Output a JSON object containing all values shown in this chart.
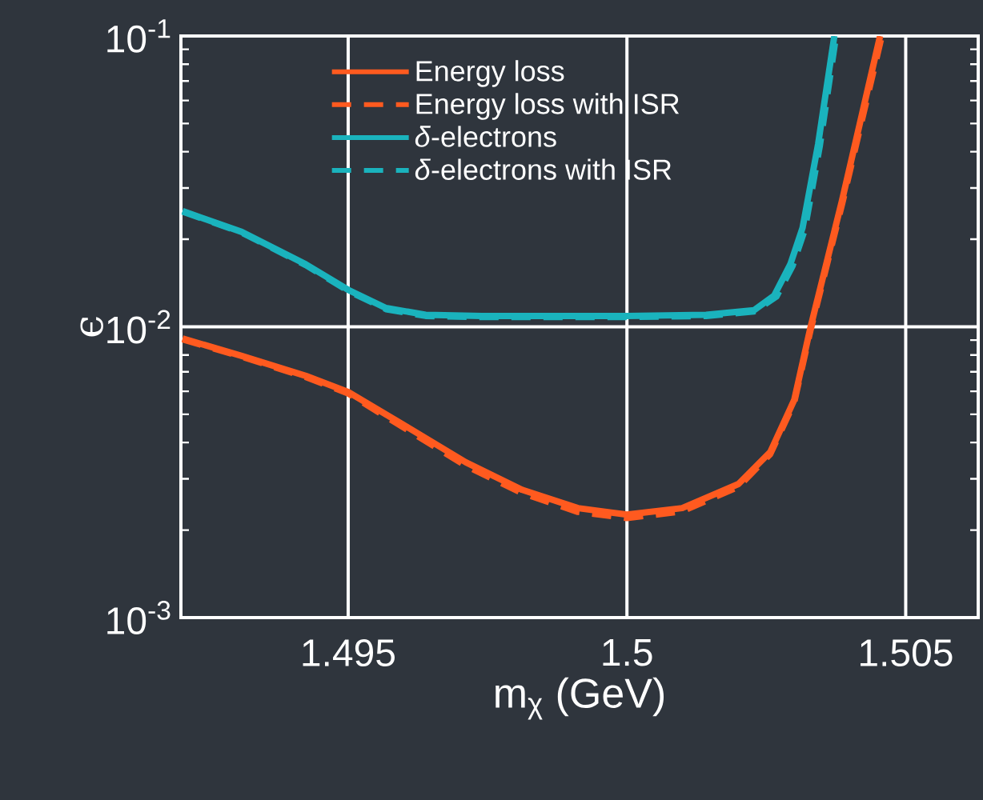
{
  "chart_data": {
    "type": "line",
    "xlabel": "m$_{χ}$ (GeV)",
    "ylabel": "ϵ",
    "log": "y",
    "grid": true,
    "legend": "top",
    "line_style": "solid",
    "marker": "none",
    "xlim": [
      1.492,
      1.5063
    ],
    "xticks": [
      1.495,
      1.5,
      1.505
    ],
    "ylim": [
      0.001,
      0.1
    ],
    "yticks": [
      {
        "value": 0.001,
        "label": "10$^{-3}$"
      },
      {
        "value": 0.01,
        "label": "10$^{-2}$"
      },
      {
        "value": 0.1,
        "label": "10$^{-1}$"
      }
    ],
    "series": [
      {
        "name": "Energy loss",
        "color": "#ff5a1f",
        "x": [
          1.49203,
          1.49309,
          1.49424,
          1.495,
          1.49596,
          1.49711,
          1.49812,
          1.49912,
          1.5,
          1.50099,
          1.502,
          1.50257,
          1.503,
          1.50329,
          1.50386,
          1.50454
        ],
        "values": [
          0.00912,
          0.00794,
          0.00678,
          0.00597,
          0.00464,
          0.00342,
          0.00275,
          0.00238,
          0.00226,
          0.00238,
          0.00288,
          0.00371,
          0.0056,
          0.00991,
          0.0273,
          0.1
        ]
      },
      {
        "name": "Energy loss with ISR",
        "color": "#ff5a1f",
        "line_style": "dashed",
        "x": [
          1.49203,
          1.49309,
          1.49424,
          1.495,
          1.49596,
          1.49711,
          1.49812,
          1.49912,
          1.5,
          1.50099,
          1.502,
          1.50257,
          1.503,
          1.50329,
          1.50386,
          1.50457
        ],
        "values": [
          0.00905,
          0.0079,
          0.00672,
          0.0059,
          0.00455,
          0.00333,
          0.00268,
          0.00231,
          0.0022,
          0.00232,
          0.00282,
          0.00365,
          0.0055,
          0.0097,
          0.0265,
          0.1
        ]
      },
      {
        "name": "*δ*-electrons",
        "color": "#1ab3bd",
        "x": [
          1.49203,
          1.49309,
          1.49424,
          1.495,
          1.49568,
          1.49639,
          1.4974,
          1.49884,
          1.5,
          1.50142,
          1.50228,
          1.50264,
          1.50293,
          1.50315,
          1.50343,
          1.50372
        ],
        "values": [
          0.025,
          0.0212,
          0.0164,
          0.0134,
          0.0116,
          0.011,
          0.0109,
          0.0109,
          0.0109,
          0.011,
          0.0114,
          0.0128,
          0.0164,
          0.0219,
          0.0426,
          0.1
        ]
      },
      {
        "name": "*δ*-electrons with ISR",
        "color": "#1ab3bd",
        "line_style": "dashed",
        "x": [
          1.49203,
          1.49309,
          1.49424,
          1.495,
          1.49568,
          1.49639,
          1.4974,
          1.49884,
          1.5,
          1.50142,
          1.50228,
          1.50268,
          1.50297,
          1.50319,
          1.50346,
          1.50375
        ],
        "values": [
          0.0249,
          0.0211,
          0.0163,
          0.0133,
          0.0115,
          0.0109,
          0.0108,
          0.0108,
          0.0108,
          0.0109,
          0.0113,
          0.0127,
          0.0162,
          0.0216,
          0.042,
          0.1
        ]
      }
    ]
  }
}
